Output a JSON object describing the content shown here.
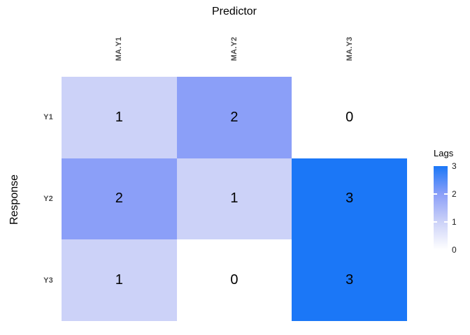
{
  "chart_data": {
    "type": "heatmap",
    "title": "Predictor",
    "xlabel": "Predictor",
    "ylabel": "Response",
    "columns": [
      "MA.Y1",
      "MA.Y2",
      "MA.Y3"
    ],
    "rows": [
      "Y1",
      "Y2",
      "Y3"
    ],
    "values": [
      [
        1,
        2,
        0
      ],
      [
        2,
        1,
        3
      ],
      [
        1,
        0,
        3
      ]
    ],
    "legend_title": "Lags",
    "legend_range": [
      0,
      3
    ],
    "legend_tick_labels": [
      "3",
      "2",
      "1",
      "0"
    ],
    "color_scale": {
      "0": "#FFFFFF",
      "1": "#CCD2F8",
      "2": "#8B9FF8",
      "3": "#1B77F7"
    },
    "grid": "off",
    "legend_position": "right",
    "axis_label_color": "#4d4d4d",
    "text_color": "#000000"
  }
}
